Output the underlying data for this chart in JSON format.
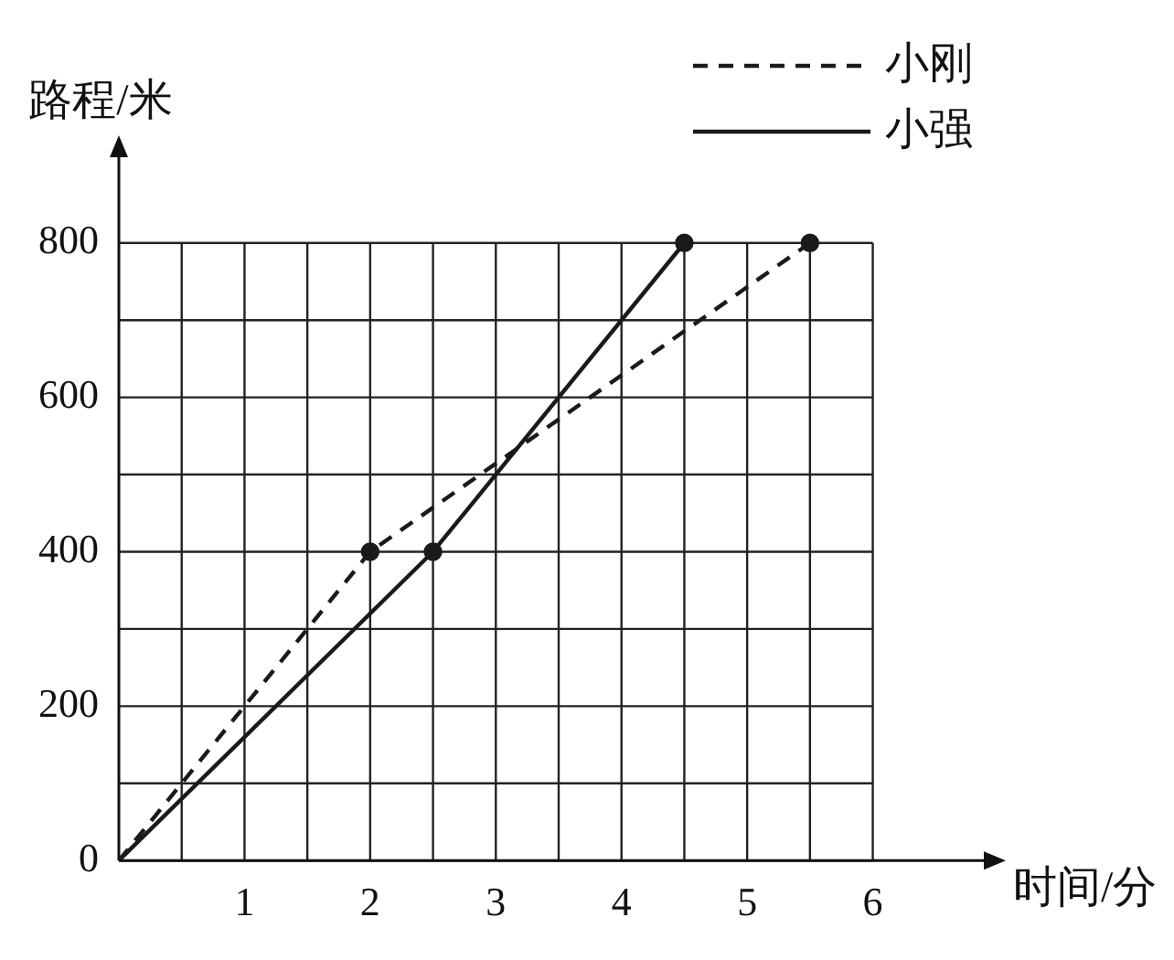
{
  "chart_data": {
    "type": "line",
    "xlabel": "时间/分",
    "ylabel": "路程/米",
    "xlim": [
      0,
      7
    ],
    "ylim": [
      0,
      930
    ],
    "xticks": [
      {
        "value": 0.5,
        "label": null
      },
      1,
      {
        "value": 1.5,
        "label": null
      },
      2,
      {
        "value": 2.5,
        "label": null
      },
      3,
      {
        "value": 3.5,
        "label": null
      },
      4,
      {
        "value": 4.5,
        "label": null
      },
      5,
      {
        "value": 5.5,
        "label": null
      },
      6
    ],
    "yticks": [
      0,
      {
        "value": 100,
        "label": null
      },
      200,
      {
        "value": 300,
        "label": null
      },
      400,
      {
        "value": 500,
        "label": null
      },
      600,
      {
        "value": 700,
        "label": null
      },
      800
    ],
    "grid": true,
    "legend": "top right",
    "marker": "circle",
    "series": [
      {
        "name": "小刚",
        "color": "#1a1a1a",
        "line_style": "dashed",
        "x": [
          0,
          2,
          5.5
        ],
        "values": [
          0,
          400,
          800
        ]
      },
      {
        "name": "小强",
        "color": "#1a1a1a",
        "line_style": "solid",
        "x": [
          0,
          2.5,
          4.5
        ],
        "values": [
          0,
          400,
          800
        ]
      }
    ]
  }
}
